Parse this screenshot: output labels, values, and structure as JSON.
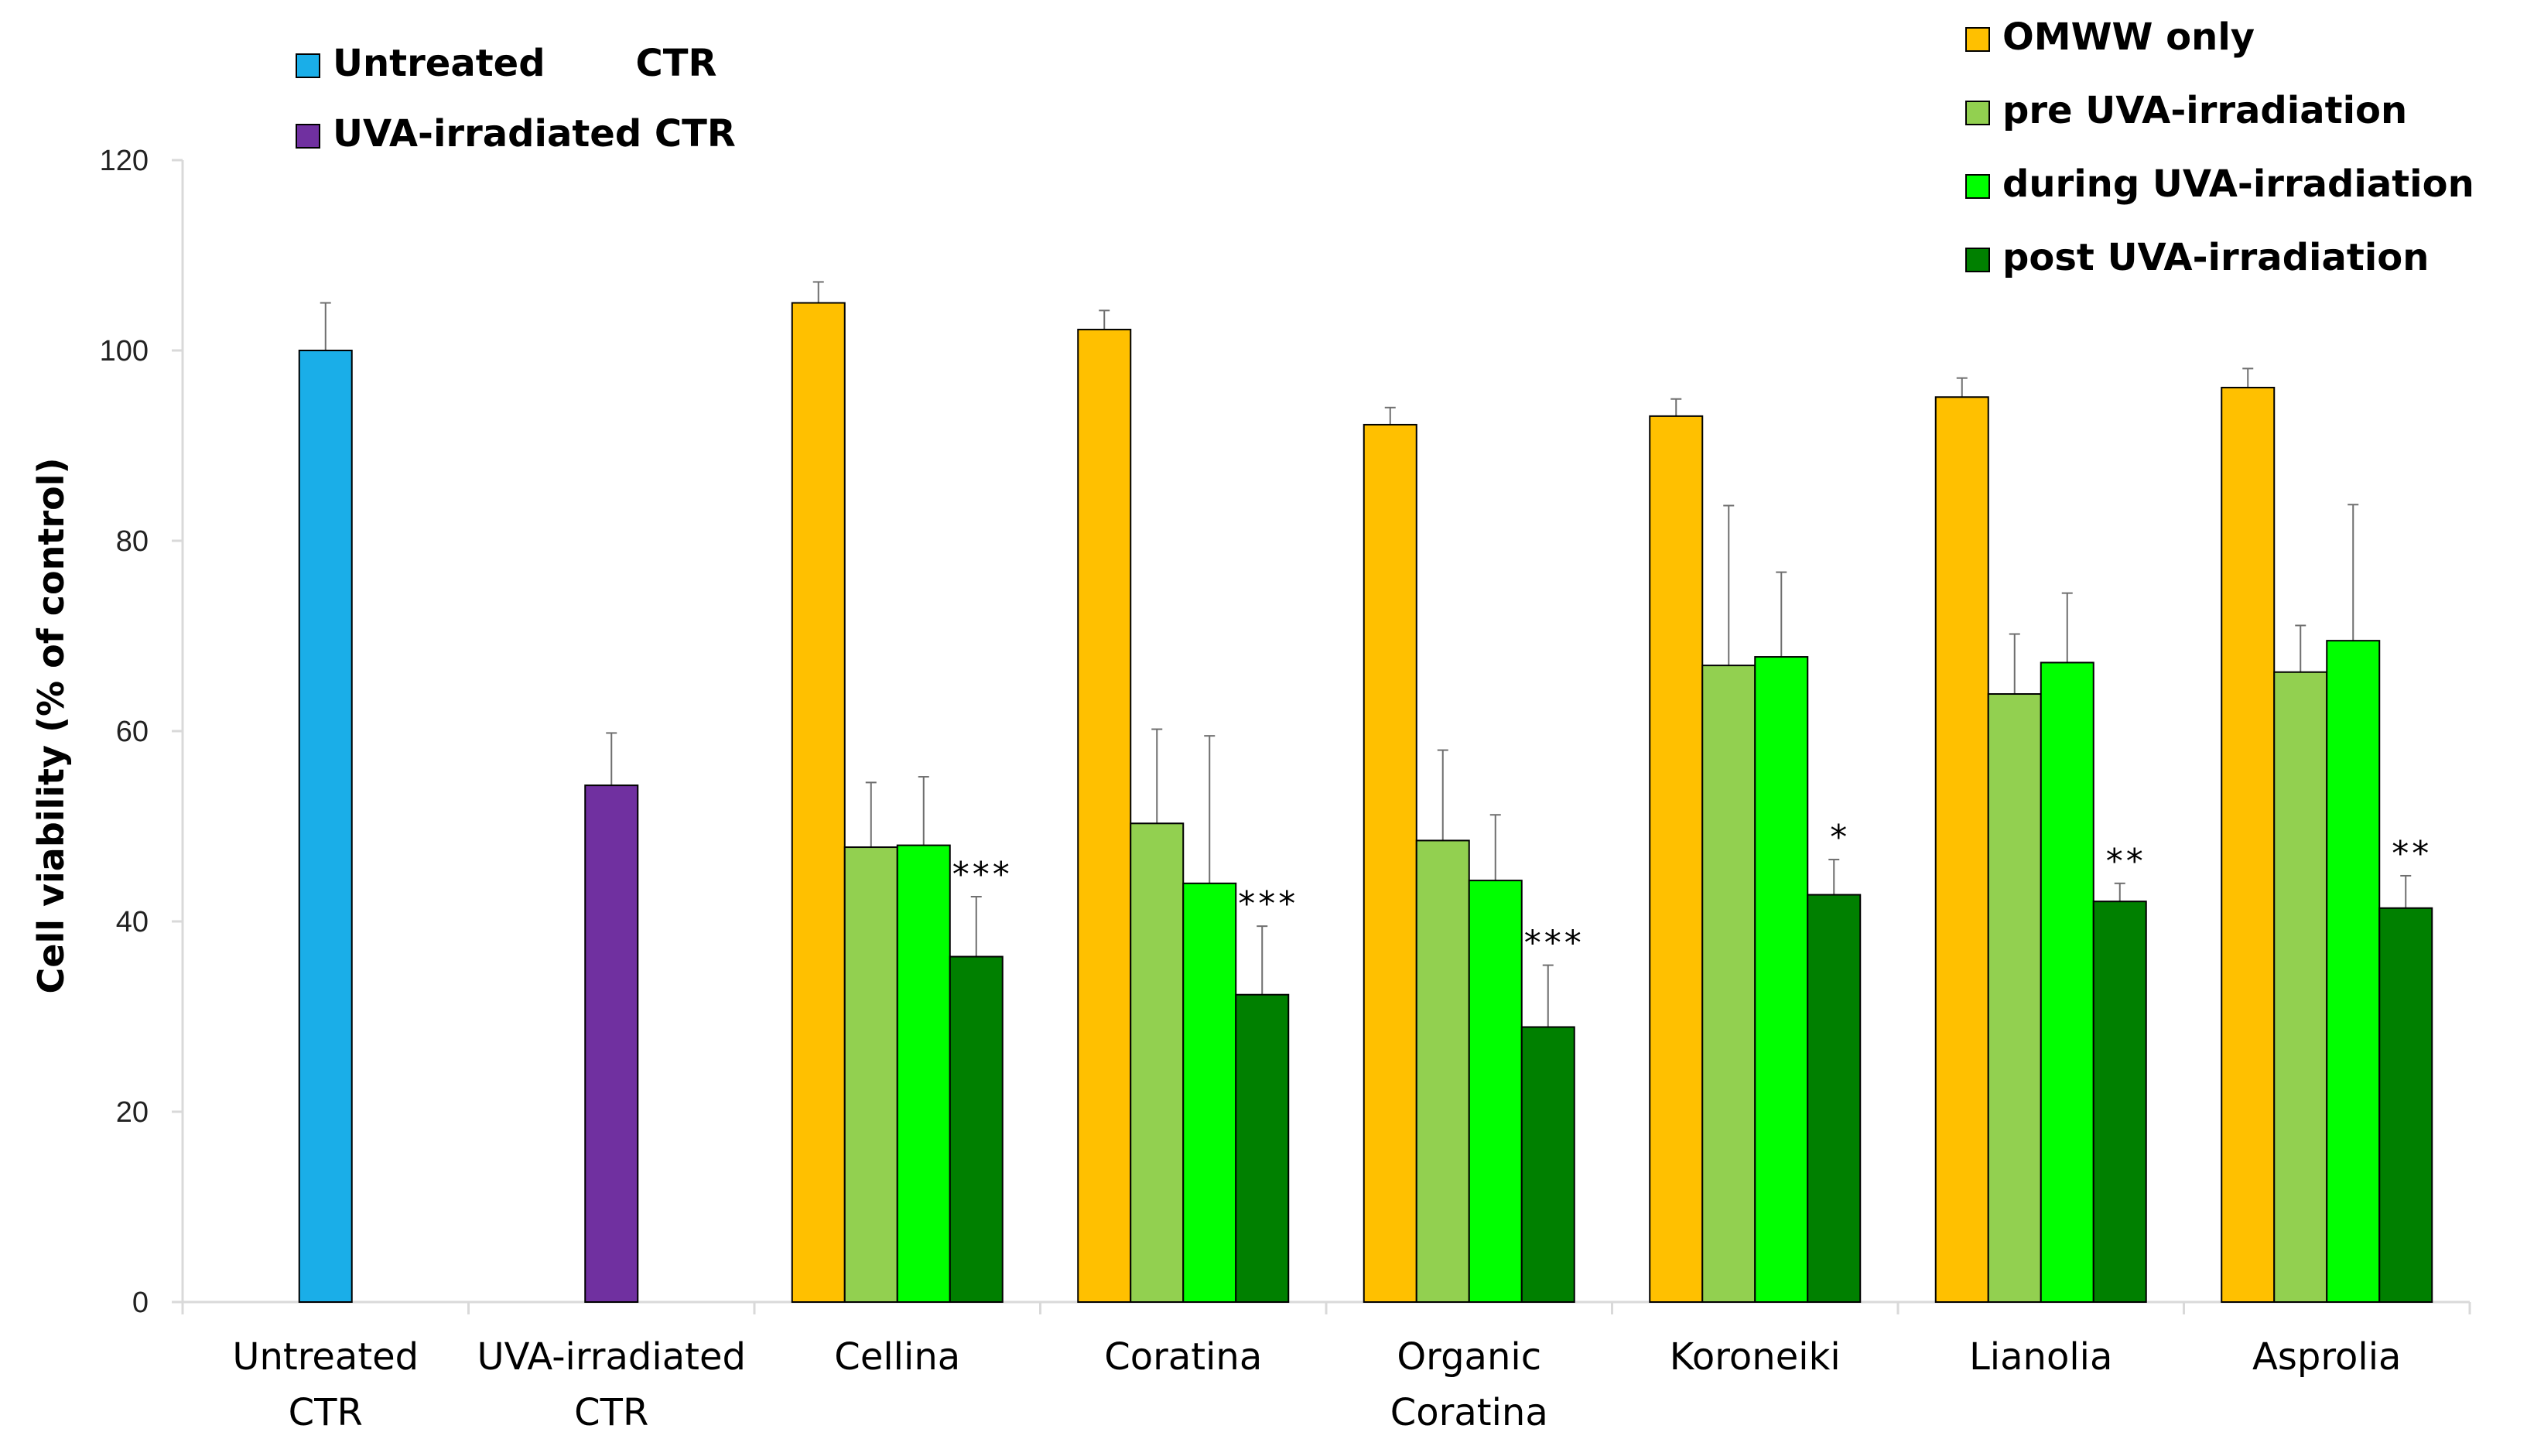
{
  "chart_data": {
    "type": "bar",
    "title": "",
    "ylabel": "Cell viability (% of control)",
    "xlabel": "",
    "ylim": [
      0,
      120
    ],
    "yticks": [
      "0",
      "20",
      "40",
      "60",
      "80",
      "100",
      "120"
    ],
    "grid": false,
    "control_groups": [
      {
        "label": [
          "Untreated",
          "CTR"
        ],
        "series_name": "Untreated CTR",
        "value": 100,
        "error": 5,
        "color": "#1AAEE8"
      },
      {
        "label": [
          "UVA-irradiated",
          "CTR"
        ],
        "series_name": "UVA-irradiated CTR",
        "value": 54.3,
        "error": 5.5,
        "color": "#7030A0"
      }
    ],
    "categories": [
      [
        "Cellina"
      ],
      [
        "Coratina"
      ],
      [
        "Organic",
        "Coratina"
      ],
      [
        "Koroneiki"
      ],
      [
        "Lianolia"
      ],
      [
        "Asprolia"
      ]
    ],
    "series": [
      {
        "name": "OMWW only",
        "color": "#FFC000",
        "values": [
          105,
          102.2,
          92.2,
          93.1,
          95.1,
          96.1
        ],
        "errors": [
          2.2,
          2.0,
          1.8,
          1.8,
          2.0,
          2.0
        ]
      },
      {
        "name": "pre UVA-irradiation",
        "color": "#92D050",
        "values": [
          47.8,
          50.3,
          48.5,
          66.9,
          63.9,
          66.2
        ],
        "errors": [
          6.8,
          9.9,
          9.5,
          16.8,
          6.3,
          4.9
        ]
      },
      {
        "name": "during UVA-irradiation",
        "color": "#00FF00",
        "values": [
          48,
          44,
          44.3,
          67.8,
          67.2,
          69.5
        ],
        "errors": [
          7.2,
          15.5,
          6.9,
          8.9,
          7.3,
          14.3
        ]
      },
      {
        "name": "post UVA-irradiation",
        "color": "#008000",
        "values": [
          36.3,
          32.3,
          28.9,
          42.8,
          42.1,
          41.4
        ],
        "errors": [
          6.3,
          7.2,
          6.5,
          3.7,
          1.9,
          3.4
        ]
      }
    ],
    "significance": [
      "***",
      "***",
      "***",
      "*",
      "**",
      "**"
    ],
    "legend": {
      "left_items": [
        {
          "label": "Untreated       CTR",
          "color": "#1AAEE8"
        },
        {
          "label": "UVA-irradiated CTR",
          "color": "#7030A0"
        }
      ],
      "right_items": [
        {
          "label": "OMWW only",
          "color": "#FFC000"
        },
        {
          "label": "pre UVA-irradiation",
          "color": "#92D050"
        },
        {
          "label": "during UVA-irradiation",
          "color": "#00FF00"
        },
        {
          "label": "post UVA-irradiation",
          "color": "#008000"
        }
      ],
      "position": "top"
    }
  }
}
